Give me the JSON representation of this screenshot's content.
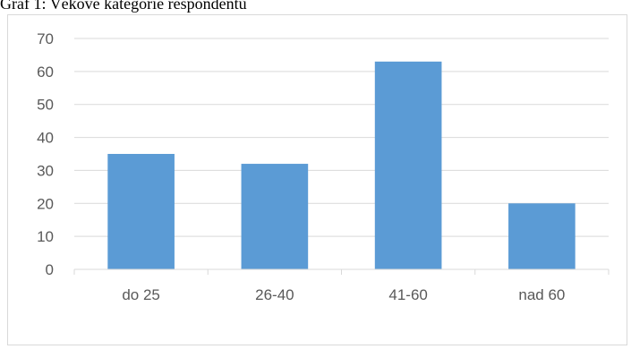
{
  "caption": "Graf 1: Věkové kategorie respondentů",
  "chart_data": {
    "type": "bar",
    "title": "",
    "xlabel": "",
    "ylabel": "",
    "categories": [
      "do 25",
      "26-40",
      "41-60",
      "nad 60"
    ],
    "values": [
      35,
      32,
      63,
      20
    ],
    "ylim": [
      0,
      70
    ],
    "yticks": [
      0,
      10,
      20,
      30,
      40,
      50,
      60,
      70
    ],
    "grid": true,
    "legend": "none",
    "bar_color": "#5b9bd5",
    "grid_color": "#d9d9d9",
    "axis_color": "#d9d9d9",
    "label_color": "#595959"
  }
}
